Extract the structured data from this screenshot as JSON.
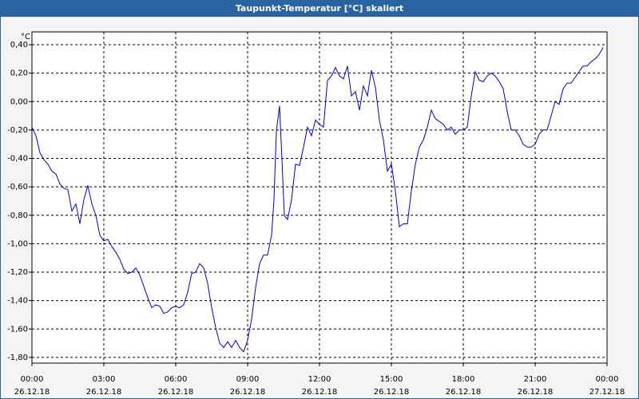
{
  "chart_data": {
    "type": "line",
    "title": "Taupunkt-Temperatur [°C] skaliert",
    "y_label": "°C",
    "x": [
      0,
      10,
      20,
      30,
      40,
      50,
      60,
      70,
      80,
      90,
      100,
      110,
      120,
      130,
      140,
      150,
      160,
      170,
      180,
      190,
      200,
      210,
      220,
      230,
      240,
      250,
      260,
      270,
      280,
      290,
      300,
      310,
      320,
      330,
      340,
      350,
      360,
      370,
      380,
      390,
      400,
      410,
      420,
      430,
      440,
      450,
      460,
      470,
      480,
      490,
      500,
      510,
      520,
      530,
      540,
      550,
      560,
      570,
      580,
      590,
      600,
      606,
      612,
      620,
      626,
      632,
      640,
      650,
      660,
      670,
      680,
      690,
      700,
      710,
      720,
      730,
      740,
      750,
      760,
      770,
      780,
      790,
      800,
      810,
      820,
      830,
      840,
      850,
      860,
      870,
      880,
      890,
      900,
      910,
      920,
      930,
      940,
      950,
      960,
      970,
      980,
      990,
      1000,
      1010,
      1020,
      1030,
      1040,
      1050,
      1060,
      1070,
      1080,
      1090,
      1100,
      1110,
      1120,
      1130,
      1140,
      1150,
      1160,
      1170,
      1180,
      1190,
      1200,
      1210,
      1220,
      1230,
      1240,
      1250,
      1260,
      1270,
      1280,
      1290,
      1300,
      1310,
      1320,
      1330,
      1340,
      1350,
      1360,
      1370,
      1380,
      1390,
      1400,
      1410,
      1420,
      1430
    ],
    "series": [
      {
        "color": "#0000c8",
        "values": [
          -0.18,
          -0.24,
          -0.36,
          -0.41,
          -0.44,
          -0.49,
          -0.51,
          -0.58,
          -0.61,
          -0.62,
          -0.77,
          -0.72,
          -0.86,
          -0.69,
          -0.59,
          -0.72,
          -0.8,
          -0.94,
          -0.98,
          -0.97,
          -1.02,
          -1.06,
          -1.11,
          -1.18,
          -1.21,
          -1.2,
          -1.17,
          -1.22,
          -1.3,
          -1.38,
          -1.45,
          -1.43,
          -1.44,
          -1.49,
          -1.48,
          -1.45,
          -1.44,
          -1.45,
          -1.43,
          -1.34,
          -1.21,
          -1.2,
          -1.14,
          -1.17,
          -1.28,
          -1.45,
          -1.59,
          -1.7,
          -1.73,
          -1.69,
          -1.73,
          -1.68,
          -1.73,
          -1.76,
          -1.68,
          -1.53,
          -1.31,
          -1.14,
          -1.08,
          -1.08,
          -0.94,
          -0.69,
          -0.21,
          -0.03,
          -0.41,
          -0.8,
          -0.83,
          -0.69,
          -0.44,
          -0.45,
          -0.32,
          -0.18,
          -0.24,
          -0.13,
          -0.16,
          -0.18,
          0.15,
          0.18,
          0.24,
          0.18,
          0.16,
          0.25,
          0.04,
          0.07,
          -0.06,
          0.11,
          0.04,
          0.22,
          0.1,
          -0.13,
          -0.27,
          -0.49,
          -0.44,
          -0.63,
          -0.88,
          -0.86,
          -0.86,
          -0.63,
          -0.44,
          -0.32,
          -0.27,
          -0.18,
          -0.06,
          -0.12,
          -0.14,
          -0.16,
          -0.2,
          -0.18,
          -0.23,
          -0.2,
          -0.2,
          -0.18,
          0.04,
          0.21,
          0.15,
          0.14,
          0.18,
          0.2,
          0.18,
          0.14,
          0.09,
          -0.07,
          -0.2,
          -0.2,
          -0.24,
          -0.3,
          -0.32,
          -0.32,
          -0.3,
          -0.23,
          -0.2,
          -0.2,
          -0.1,
          0.0,
          -0.02,
          0.09,
          0.13,
          0.13,
          0.17,
          0.21,
          0.25,
          0.25,
          0.28,
          0.3,
          0.33,
          0.38
        ]
      }
    ],
    "xlim": [
      0,
      1440
    ],
    "xticks": [
      {
        "value": 0,
        "label": "00:00",
        "date": "26.12.18"
      },
      {
        "value": 180,
        "label": "03:00",
        "date": "26.12.18"
      },
      {
        "value": 360,
        "label": "06:00",
        "date": "26.12.18"
      },
      {
        "value": 540,
        "label": "09:00",
        "date": "26.12.18"
      },
      {
        "value": 720,
        "label": "12:00",
        "date": "26.12.18"
      },
      {
        "value": 900,
        "label": "15:00",
        "date": "26.12.18"
      },
      {
        "value": 1080,
        "label": "18:00",
        "date": "26.12.18"
      },
      {
        "value": 1260,
        "label": "21:00",
        "date": "26.12.18"
      },
      {
        "value": 1440,
        "label": "00:00",
        "date": "27.12.18"
      }
    ],
    "ylim": [
      -1.84,
      0.49
    ],
    "yticks": [
      {
        "value": 0.4,
        "label": "0,40"
      },
      {
        "value": 0.2,
        "label": "0,20"
      },
      {
        "value": 0,
        "label": "0,00"
      },
      {
        "value": -0.2,
        "label": "-0,20"
      },
      {
        "value": -0.4,
        "label": "-0,40"
      },
      {
        "value": -0.6,
        "label": "-0,60"
      },
      {
        "value": -0.8,
        "label": "-0,80"
      },
      {
        "value": -1.0,
        "label": "-1,00"
      },
      {
        "value": -1.2,
        "label": "-1,20"
      },
      {
        "value": -1.4,
        "label": "-1,40"
      },
      {
        "value": -1.6,
        "label": "-1,60"
      },
      {
        "value": -1.8,
        "label": "-1,80"
      }
    ],
    "grid": true
  }
}
